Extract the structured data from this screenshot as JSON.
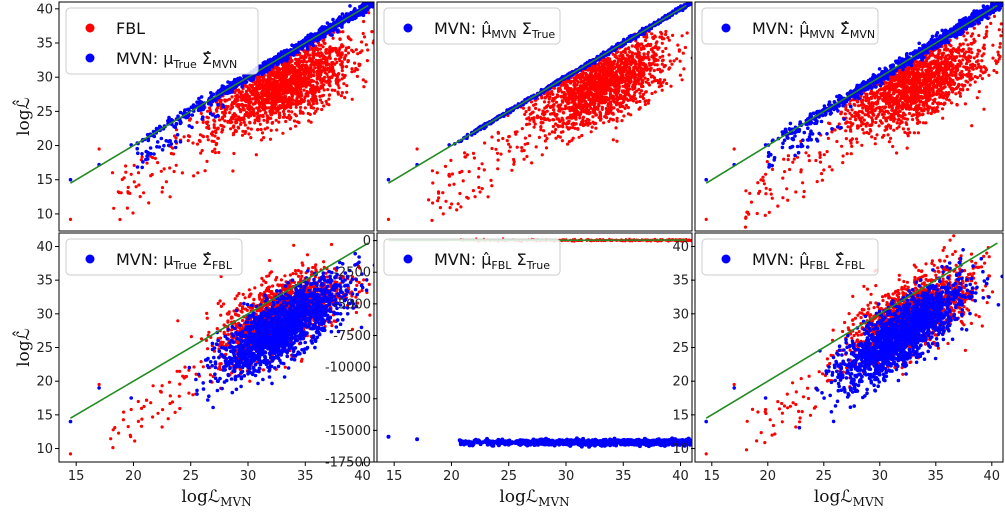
{
  "chart_data": [
    {
      "type": "scatter",
      "panel": "top-left",
      "xlim": [
        13.5,
        41
      ],
      "ylim": [
        7.5,
        41
      ],
      "xticks": [],
      "yticks": [
        10,
        15,
        20,
        25,
        30,
        35,
        40
      ],
      "ylabel": "logℒ̂",
      "xlabel": "",
      "legend": [
        {
          "color": "#ff0000",
          "text": "FBL"
        },
        {
          "color": "#0000ff",
          "text": "MVN: μ",
          "sub1": "True",
          "mid": " Σ̂",
          "sub2": "MVN"
        }
      ],
      "legend_position": "top-left",
      "series": [
        {
          "name": "FBL",
          "color": "#ff0000",
          "kind": "fbl",
          "center": [
            33,
            29
          ]
        },
        {
          "name": "MVN: μTrue Σ̂MVN",
          "color": "#0000ff",
          "kind": "diag",
          "spread": 0.4
        }
      ],
      "reference_line": {
        "color": "#228b22",
        "x": [
          14.5,
          40.5
        ],
        "y": [
          14.5,
          40.5
        ]
      }
    },
    {
      "type": "scatter",
      "panel": "top-middle",
      "xlim": [
        13.5,
        41
      ],
      "ylim": [
        7.5,
        41
      ],
      "xticks": [],
      "yticks": [],
      "legend": [
        {
          "color": "#0000ff",
          "text": "MVN: μ̂",
          "sub1": "MVN",
          "mid": " Σ",
          "sub2": "True"
        }
      ],
      "legend_position": "top-left",
      "series": [
        {
          "name": "FBL",
          "color": "#ff0000",
          "kind": "fbl",
          "center": [
            33,
            29
          ]
        },
        {
          "name": "MVN: μ̂MVN ΣTrue",
          "color": "#0000ff",
          "kind": "diag",
          "spread": 0.15
        }
      ],
      "reference_line": {
        "color": "#228b22",
        "x": [
          14.5,
          40.5
        ],
        "y": [
          14.5,
          40.5
        ]
      }
    },
    {
      "type": "scatter",
      "panel": "top-right",
      "xlim": [
        13.5,
        41
      ],
      "ylim": [
        7.5,
        41
      ],
      "xticks": [],
      "yticks": [],
      "legend": [
        {
          "color": "#0000ff",
          "text": "MVN: μ̂",
          "sub1": "MVN",
          "mid": " Σ̂",
          "sub2": "MVN"
        }
      ],
      "legend_position": "top-left",
      "series": [
        {
          "name": "FBL",
          "color": "#ff0000",
          "kind": "fbl",
          "center": [
            33,
            29
          ]
        },
        {
          "name": "MVN: μ̂MVN Σ̂MVN",
          "color": "#0000ff",
          "kind": "diag",
          "spread": 0.45
        }
      ],
      "reference_line": {
        "color": "#228b22",
        "x": [
          14.5,
          40.5
        ],
        "y": [
          14.5,
          40.5
        ]
      }
    },
    {
      "type": "scatter",
      "panel": "bottom-left",
      "xlim": [
        13.5,
        41
      ],
      "ylim": [
        8,
        42
      ],
      "xticks": [
        15,
        20,
        25,
        30,
        35,
        40
      ],
      "yticks": [
        10,
        15,
        20,
        25,
        30,
        35,
        40
      ],
      "ylabel": "logℒ̂",
      "xlabel": "logℒ",
      "xlabel_sub": "MVN",
      "legend": [
        {
          "color": "#0000ff",
          "text": "MVN: μ",
          "sub1": "True",
          "mid": " Σ̂",
          "sub2": "FBL"
        }
      ],
      "legend_position": "top-left",
      "series": [
        {
          "name": "FBL",
          "color": "#ff0000",
          "kind": "fblbottom",
          "center": [
            33,
            30
          ]
        },
        {
          "name": "MVN: μTrue Σ̂FBL",
          "color": "#0000ff",
          "kind": "cloud",
          "center": [
            33,
            28
          ],
          "slope": 0.4
        }
      ],
      "reference_line": {
        "color": "#228b22",
        "x": [
          14.5,
          40.5
        ],
        "y": [
          14.5,
          40.5
        ]
      }
    },
    {
      "type": "scatter",
      "panel": "bottom-middle",
      "xlim": [
        13.5,
        41
      ],
      "ylim": [
        -17500,
        600
      ],
      "xticks": [
        15,
        20,
        25,
        30,
        35,
        40
      ],
      "yticks": [
        0,
        -2500,
        -5000,
        -7500,
        -10000,
        -12500,
        -15000,
        -17500
      ],
      "xlabel": "logℒ",
      "xlabel_sub": "MVN",
      "legend": [
        {
          "color": "#0000ff",
          "text": "MVN: μ̂",
          "sub1": "FBL",
          "mid": " Σ",
          "sub2": "True"
        }
      ],
      "legend_position": "top-left",
      "series": [
        {
          "name": "FBL",
          "color": "#ff0000",
          "kind": "band",
          "level": 30
        },
        {
          "name": "MVN: μ̂FBL ΣTrue",
          "color": "#0000ff",
          "kind": "band",
          "level": -15950
        }
      ],
      "reference_line": {
        "color": "#228b22",
        "x": [
          14.5,
          40.5
        ],
        "y": [
          14.5,
          40.5
        ]
      }
    },
    {
      "type": "scatter",
      "panel": "bottom-right",
      "xlim": [
        13.5,
        41
      ],
      "ylim": [
        8,
        42
      ],
      "xticks": [
        15,
        20,
        25,
        30,
        35,
        40
      ],
      "yticks": [
        10,
        15,
        20,
        25,
        30,
        35,
        40
      ],
      "xlabel": "logℒ",
      "xlabel_sub": "MVN",
      "legend": [
        {
          "color": "#0000ff",
          "text": "MVN: μ̂",
          "sub1": "FBL",
          "mid": " Σ̂",
          "sub2": "FBL"
        }
      ],
      "legend_position": "top-left",
      "series": [
        {
          "name": "FBL",
          "color": "#ff0000",
          "kind": "fblbottom",
          "center": [
            33,
            30
          ]
        },
        {
          "name": "MVN: μ̂FBL Σ̂FBL",
          "color": "#0000ff",
          "kind": "cloud",
          "center": [
            32,
            27
          ],
          "slope": 0.45
        }
      ],
      "reference_line": {
        "color": "#228b22",
        "x": [
          14.5,
          40.5
        ],
        "y": [
          14.5,
          40.5
        ]
      }
    }
  ]
}
